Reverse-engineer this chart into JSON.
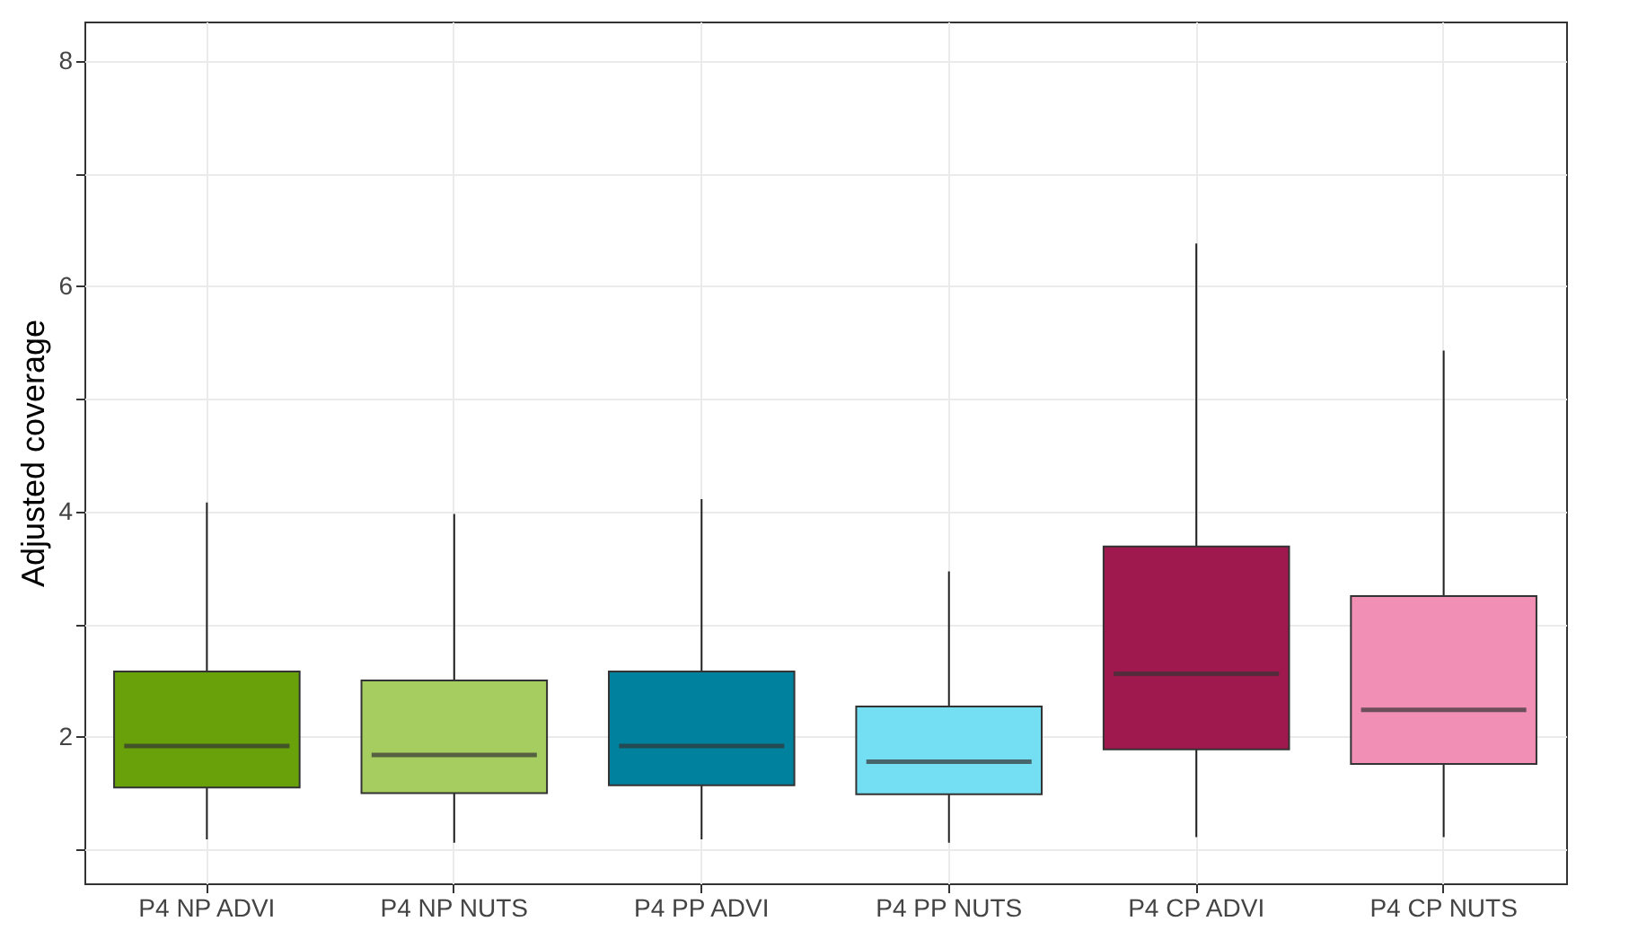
{
  "chart_data": {
    "type": "box",
    "ylabel": "Adjusted coverage",
    "categories": [
      "P4 NP ADVI",
      "P4 NP NUTS",
      "P4 PP ADVI",
      "P4 PP NUTS",
      "P4 CP ADVI",
      "P4 CP NUTS"
    ],
    "colors": [
      "#68a10a",
      "#a6cd60",
      "#00829f",
      "#74def2",
      "#a0194e",
      "#f28fb5"
    ],
    "boxes": [
      {
        "low": 1.09,
        "q1": 1.55,
        "median": 1.92,
        "q3": 2.58,
        "high": 4.08
      },
      {
        "low": 1.06,
        "q1": 1.5,
        "median": 1.84,
        "q3": 2.5,
        "high": 3.98
      },
      {
        "low": 1.09,
        "q1": 1.57,
        "median": 1.92,
        "q3": 2.58,
        "high": 4.11
      },
      {
        "low": 1.06,
        "q1": 1.49,
        "median": 1.78,
        "q3": 2.27,
        "high": 3.47
      },
      {
        "low": 1.11,
        "q1": 1.89,
        "median": 2.56,
        "q3": 3.69,
        "high": 6.38
      },
      {
        "low": 1.11,
        "q1": 1.76,
        "median": 2.24,
        "q3": 3.25,
        "high": 5.43
      }
    ],
    "ylim": [
      0.7,
      8.35
    ],
    "yticks": [
      {
        "value": 1,
        "label": null
      },
      2,
      {
        "value": 3,
        "label": null
      },
      4,
      {
        "value": 5,
        "label": null
      },
      6,
      {
        "value": 7,
        "label": null
      },
      8
    ],
    "grid": true
  }
}
